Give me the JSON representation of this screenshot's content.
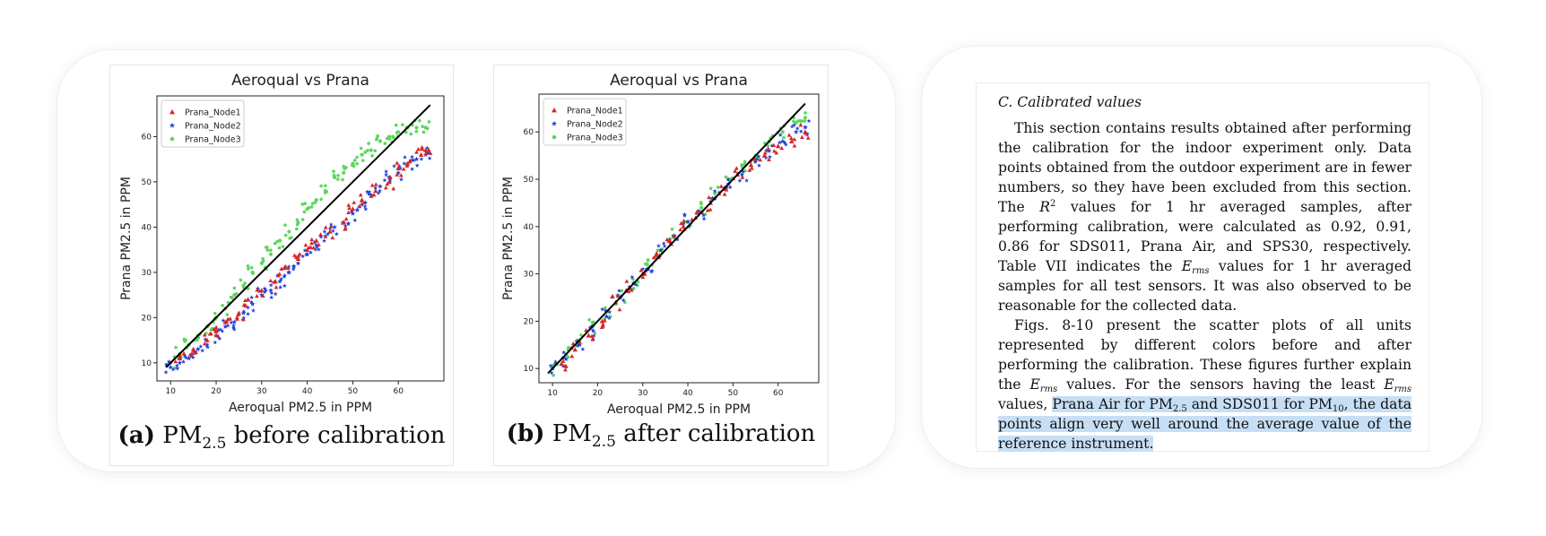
{
  "colors": {
    "node1": "#d62728",
    "node2": "#1f3fd8",
    "node3": "#5cd65c",
    "line": "#000000",
    "highlight": "#c7dff5"
  },
  "figure_a": {
    "caption_label": "(a)",
    "caption_pm": "PM",
    "caption_sub": "2.5",
    "caption_rest": "before calibration"
  },
  "figure_b": {
    "caption_label": "(b)",
    "caption_pm": "PM",
    "caption_sub": "2.5",
    "caption_rest": "after calibration"
  },
  "chart_data": [
    {
      "type": "scatter",
      "title": "Aeroqual vs Prana",
      "xlabel": "Aeroqual PM2.5 in PPM",
      "ylabel": "Prana PM2.5 in PPM",
      "xlim": [
        7,
        70
      ],
      "ylim": [
        6,
        69
      ],
      "xticks": [
        10,
        20,
        30,
        40,
        50,
        60
      ],
      "yticks": [
        10,
        20,
        30,
        40,
        50,
        60
      ],
      "legend": [
        "Prana_Node1",
        "Prana_Node2",
        "Prana_Node3"
      ],
      "legend_position": "top-left",
      "reference_line": {
        "x": [
          9,
          67
        ],
        "y": [
          9,
          67
        ]
      },
      "series": [
        {
          "name": "Prana_Node1",
          "marker": "triangle",
          "x": [
            12,
            15,
            18,
            20,
            22,
            25,
            27,
            30,
            33,
            35,
            38,
            40,
            42,
            45,
            48,
            50,
            52,
            55,
            58,
            60,
            62,
            65,
            66
          ],
          "y": [
            11,
            13,
            15,
            17,
            19,
            21,
            24,
            26,
            28,
            31,
            33,
            35,
            37,
            39,
            41,
            44,
            46,
            48,
            50,
            53,
            54,
            56,
            57
          ]
        },
        {
          "name": "Prana_Node2",
          "marker": "star",
          "x": [
            10,
            12,
            14,
            16,
            18,
            20,
            22,
            24,
            26,
            28,
            30,
            32,
            34,
            36,
            38,
            40,
            42,
            44,
            46,
            48,
            50,
            52,
            54,
            56,
            58,
            60,
            62,
            64,
            66
          ],
          "y": [
            9,
            10,
            11,
            13,
            14,
            16,
            18,
            19,
            21,
            23,
            25,
            26,
            28,
            30,
            32,
            34,
            36,
            38,
            40,
            41,
            43,
            45,
            47,
            49,
            51,
            52,
            54,
            55,
            56
          ]
        },
        {
          "name": "Prana_Node3",
          "marker": "dot",
          "x": [
            10,
            12,
            14,
            16,
            18,
            20,
            22,
            24,
            26,
            28,
            30,
            32,
            34,
            36,
            38,
            40,
            42,
            44,
            46,
            48,
            50,
            52,
            54,
            56,
            58,
            60,
            62,
            64,
            66
          ],
          "y": [
            10,
            12,
            14,
            16,
            18,
            20,
            22,
            25,
            27,
            30,
            32,
            34,
            37,
            39,
            41,
            44,
            46,
            48,
            51,
            52,
            54,
            56,
            57,
            59,
            60,
            61,
            62,
            62,
            62
          ]
        }
      ]
    },
    {
      "type": "scatter",
      "title": "Aeroqual vs Prana",
      "xlabel": "Aeroqual PM2.5 in PPM",
      "ylabel": "Prana PM2.5 in PPM",
      "xlim": [
        7,
        69
      ],
      "ylim": [
        7,
        68
      ],
      "xticks": [
        10,
        20,
        30,
        40,
        50,
        60
      ],
      "yticks": [
        10,
        20,
        30,
        40,
        50,
        60
      ],
      "legend": [
        "Prana_Node1",
        "Prana_Node2",
        "Prana_Node3"
      ],
      "legend_position": "top-left",
      "reference_line": {
        "x": [
          9,
          66
        ],
        "y": [
          9,
          66
        ]
      },
      "series": [
        {
          "name": "Prana_Node1",
          "marker": "triangle",
          "x": [
            12,
            15,
            18,
            21,
            24,
            27,
            30,
            33,
            36,
            39,
            42,
            45,
            48,
            51,
            54,
            57,
            60,
            63,
            66
          ],
          "y": [
            11,
            14,
            17,
            20,
            24,
            27,
            30,
            34,
            37,
            40,
            43,
            45,
            48,
            51,
            53,
            55,
            57,
            58,
            60
          ]
        },
        {
          "name": "Prana_Node2",
          "marker": "star",
          "x": [
            10,
            13,
            16,
            19,
            22,
            25,
            28,
            31,
            34,
            37,
            40,
            43,
            46,
            49,
            52,
            55,
            58,
            61,
            64,
            66
          ],
          "y": [
            10,
            12,
            15,
            18,
            21,
            25,
            28,
            31,
            35,
            38,
            41,
            43,
            46,
            49,
            51,
            54,
            56,
            58,
            60,
            61
          ]
        },
        {
          "name": "Prana_Node3",
          "marker": "dot",
          "x": [
            10,
            13,
            16,
            19,
            22,
            25,
            28,
            31,
            34,
            37,
            40,
            43,
            46,
            49,
            52,
            55,
            58,
            61,
            64,
            66
          ],
          "y": [
            10,
            13,
            16,
            19,
            22,
            25,
            28,
            32,
            35,
            38,
            41,
            44,
            47,
            50,
            53,
            55,
            58,
            60,
            62,
            63
          ]
        }
      ]
    }
  ],
  "paper": {
    "section_heading": "C.  Calibrated values",
    "p1_a": "This section contains results obtained after performing the calibration for the indoor experiment only. Data points obtained from the outdoor experiment are in fewer numbers, so they have been excluded from this section. The ",
    "r_sym": "R",
    "r_sup": "2",
    "p1_b": " values for 1 hr averaged samples, after performing calibration, were calculated as 0.92, 0.91, 0.86 for SDS011, Prana Air, and SPS30, respectively. Table VII indicates the ",
    "e_sym": "E",
    "e_sub": "rms",
    "p1_c": " values for 1 hr averaged samples for all test sensors. It was also observed to be reasonable for the collected data.",
    "p2_a": "Figs. 8-10 present the scatter plots of all units represented by different colors before and after performing the calibration. These figures further explain the ",
    "p2_b": " values. For the sensors having the least ",
    "p2_c": " values, ",
    "hl_a": "Prana Air for PM",
    "pm25_sub": "2.5",
    "hl_b": " and SDS011 for PM",
    "pm10_sub": "10",
    "hl_c": ", the data points align very well around the average value of the reference instrument."
  }
}
